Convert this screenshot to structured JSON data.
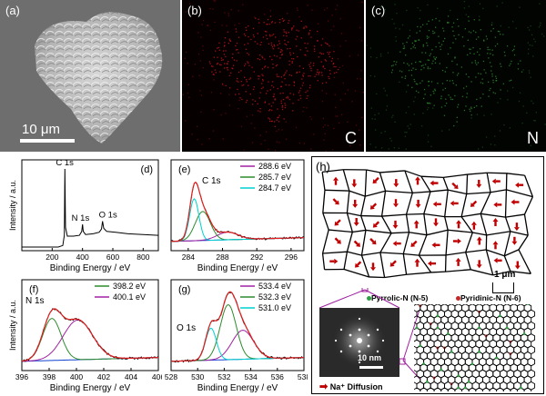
{
  "figure": {
    "panels": {
      "a": {
        "label": "(a)",
        "scale_bar": "10 μm"
      },
      "b": {
        "label": "(b)",
        "element": "C",
        "map_color": "#c0151c"
      },
      "c": {
        "label": "(c)",
        "element": "N",
        "map_color": "#2d8a2d"
      },
      "h": {
        "label": "(h)",
        "scale_bar_network": "1 μm",
        "scale_bar_diffraction": "10 nm",
        "legend_pyrrolic": "Pyrrolic-N (N-5)",
        "legend_pyridinic": "Pyridinic-N (N-6)",
        "legend_diffusion": "Na⁺ Diffusion",
        "pyrrolic_color": "#2ea043",
        "pyridinic_color": "#c62828",
        "arrow_color": "#c00000"
      }
    }
  },
  "chart_data": [
    {
      "id": "d",
      "type": "line",
      "title": "(d)",
      "xlabel": "Binding Energy / eV",
      "ylabel": "Intensity / a.u.",
      "xlim": [
        0,
        900
      ],
      "xticks": [
        200,
        400,
        600,
        800
      ],
      "annotations": [
        {
          "text": "C 1s",
          "x": 284
        },
        {
          "text": "N 1s",
          "x": 400
        },
        {
          "text": "O 1s",
          "x": 532
        }
      ],
      "series": [
        {
          "color": "#000000",
          "x": [
            0,
            60,
            120,
            180,
            240,
            270,
            280,
            284,
            288,
            300,
            340,
            380,
            395,
            400,
            405,
            420,
            470,
            510,
            525,
            532,
            540,
            560,
            620,
            700,
            800,
            900
          ],
          "y": [
            0.0,
            0.0,
            0.0,
            0.0,
            0.0,
            0.02,
            0.15,
            1.0,
            0.25,
            0.14,
            0.14,
            0.15,
            0.2,
            0.29,
            0.2,
            0.16,
            0.17,
            0.19,
            0.23,
            0.33,
            0.24,
            0.2,
            0.19,
            0.17,
            0.16,
            0.15
          ]
        }
      ]
    },
    {
      "id": "e",
      "type": "line",
      "title": "(e)",
      "annotation": "C 1s",
      "xlabel": "Binding Energy / eV",
      "xlim": [
        282,
        297.5
      ],
      "xticks": [
        284,
        288,
        292,
        296
      ],
      "series": [
        {
          "name": "288.6 eV",
          "color": "#a020a0",
          "center": 288.6,
          "amp": 0.1,
          "width": 1.8
        },
        {
          "name": "285.7 eV",
          "color": "#2e8b2e",
          "center": 285.7,
          "amp": 0.38,
          "width": 1.3
        },
        {
          "name": "284.7 eV",
          "color": "#00d0d0",
          "center": 284.7,
          "amp": 0.55,
          "width": 0.8
        }
      ],
      "fit_color": "#e02020",
      "raw_color": "#000000",
      "background_color": "#1040d0"
    },
    {
      "id": "f",
      "type": "line",
      "title": "(f)",
      "annotation": "N 1s",
      "xlabel": "Binding Energy / eV",
      "ylabel": "Intensity / a.u.",
      "xlim": [
        396,
        406
      ],
      "xticks": [
        396,
        398,
        400,
        402,
        404,
        406
      ],
      "series": [
        {
          "name": "398.2 eV",
          "color": "#2e8b2e",
          "center": 398.2,
          "amp": 0.55,
          "width": 1.0
        },
        {
          "name": "400.1 eV",
          "color": "#a020a0",
          "center": 400.1,
          "amp": 0.52,
          "width": 1.6
        }
      ],
      "fit_color": "#e02020",
      "raw_color": "#000000",
      "background_color": "#1040d0"
    },
    {
      "id": "g",
      "type": "line",
      "title": "(g)",
      "annotation": "O 1s",
      "xlabel": "Binding Energy / eV",
      "xlim": [
        528,
        538
      ],
      "xticks": [
        528,
        530,
        532,
        534,
        536,
        538
      ],
      "series": [
        {
          "name": "533.4 eV",
          "color": "#a020a0",
          "center": 533.4,
          "amp": 0.38,
          "width": 1.2
        },
        {
          "name": "532.3 eV",
          "color": "#2e8b2e",
          "center": 532.3,
          "amp": 0.72,
          "width": 0.9
        },
        {
          "name": "531.0 eV",
          "color": "#00d0d0",
          "center": 531.0,
          "amp": 0.42,
          "width": 0.6
        }
      ],
      "fit_color": "#e02020",
      "raw_color": "#000000",
      "background_color": "#1040d0"
    }
  ]
}
